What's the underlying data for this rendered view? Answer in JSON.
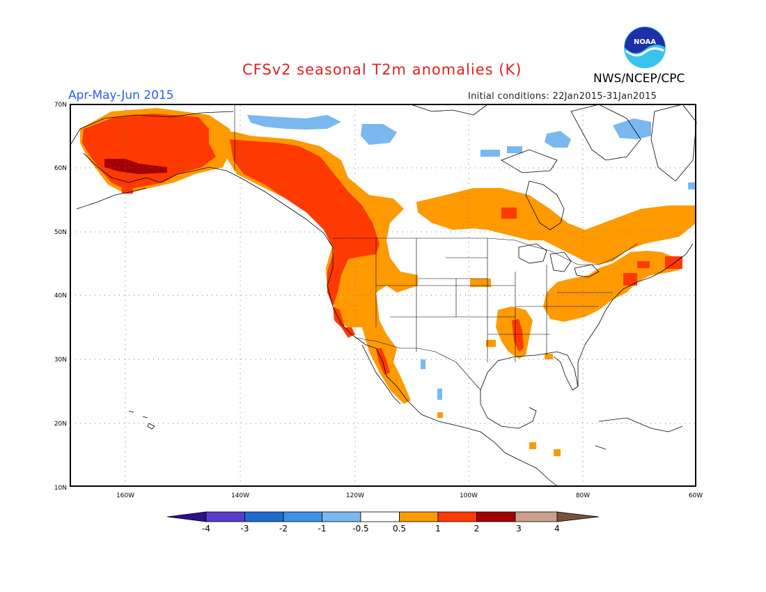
{
  "title": "CFSv2 seasonal T2m anomalies (K)",
  "agency": "NWS/NCEP/CPC",
  "logo_text": "NOAA",
  "period": "Apr-May-Jun 2015",
  "initial_conditions": "Initial conditions: 22Jan2015-31Jan2015",
  "axes": {
    "lat_range": [
      10,
      70
    ],
    "lon_range": [
      -172,
      -60
    ],
    "lat_labels": [
      "70N",
      "60N",
      "50N",
      "40N",
      "30N",
      "20N",
      "10N"
    ],
    "lon_labels": [
      "160W",
      "140W",
      "120W",
      "100W",
      "80W",
      "60W"
    ],
    "grid": "dotted"
  },
  "colorbar": {
    "labels": [
      "-4",
      "-3",
      "-2",
      "-1",
      "-0.5",
      "0.5",
      "1",
      "2",
      "3",
      "4"
    ],
    "colors": [
      "#2e0f8c",
      "#5a3ccc",
      "#1f6bd0",
      "#3f91e8",
      "#79b9ef",
      "#ffffff",
      "#ff9a00",
      "#ff3a00",
      "#a30000",
      "#caa08c",
      "#7a5040"
    ]
  },
  "anomaly_regions": [
    {
      "name": "Alaska",
      "category": "1 to 2 K"
    },
    {
      "name": "Pacific Northwest / British Columbia",
      "category": "1 to 2 K"
    },
    {
      "name": "Western US coast",
      "category": "0.5 to 2 K"
    },
    {
      "name": "Southwest US",
      "category": "0.5 to 1 K"
    },
    {
      "name": "Central Canada",
      "category": "0.5 to 1 K"
    },
    {
      "name": "Northeast US / Eastern Canada",
      "category": "0.5 to 2 K"
    },
    {
      "name": "Lower Mississippi Valley",
      "category": "0.5 to 2 K"
    },
    {
      "name": "Canadian Arctic islands",
      "category": "-1 to -0.5 K"
    }
  ]
}
